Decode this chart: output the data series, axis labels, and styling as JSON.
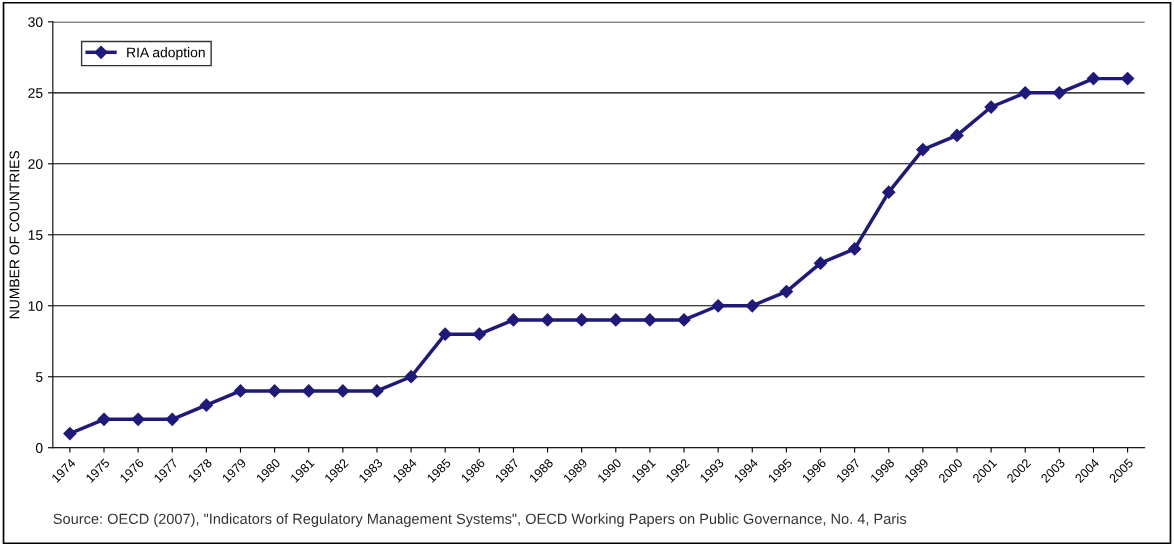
{
  "chart_data": {
    "type": "line",
    "categories": [
      "1974",
      "1975",
      "1976",
      "1977",
      "1978",
      "1979",
      "1980",
      "1981",
      "1982",
      "1983",
      "1984",
      "1985",
      "1986",
      "1987",
      "1988",
      "1989",
      "1990",
      "1991",
      "1992",
      "1993",
      "1994",
      "1995",
      "1996",
      "1997",
      "1998",
      "1999",
      "2000",
      "2001",
      "2002",
      "2003",
      "2004",
      "2005"
    ],
    "series": [
      {
        "name": "RIA adoption",
        "color": "#1f1a7a",
        "values": [
          1,
          2,
          2,
          2,
          3,
          4,
          4,
          4,
          4,
          4,
          5,
          8,
          8,
          9,
          9,
          9,
          9,
          9,
          9,
          10,
          10,
          11,
          13,
          14,
          18,
          21,
          22,
          24,
          25,
          25,
          26,
          26
        ]
      }
    ],
    "ylabel": "NUMBER OF COUNTRIES",
    "ylim": [
      0,
      30
    ],
    "yticks": [
      0,
      5,
      10,
      15,
      20,
      25,
      30
    ],
    "grid": "y",
    "legend": "top left",
    "marker": "diamond",
    "line_style": "solid",
    "annotations": [
      "Source: OECD (2007), \"Indicators of Regulatory Management Systems\", OECD Working Papers on Public Governance, No. 4, Paris"
    ]
  }
}
